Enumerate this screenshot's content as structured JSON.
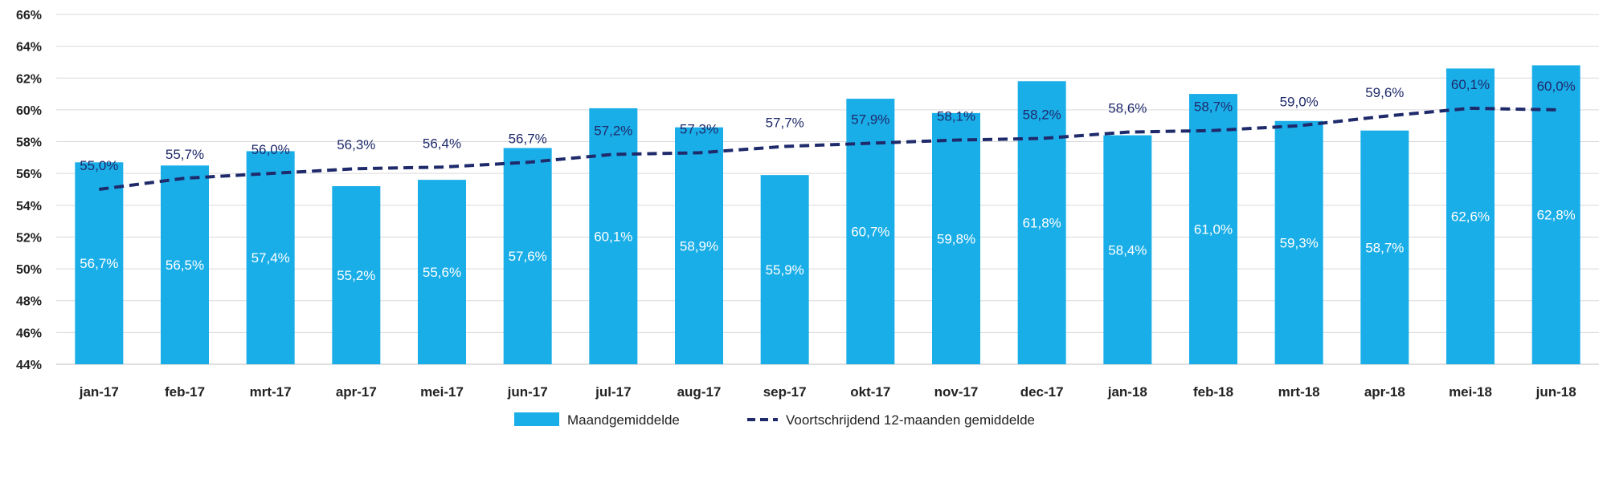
{
  "chart_data": {
    "type": "bar",
    "title": "",
    "xlabel": "",
    "ylabel": "",
    "ylim": [
      44,
      66
    ],
    "y_tick_step": 2,
    "y_tick_labels": [
      "44%",
      "46%",
      "48%",
      "50%",
      "52%",
      "54%",
      "56%",
      "58%",
      "60%",
      "62%",
      "64%",
      "66%"
    ],
    "grid": true,
    "legend_position": "bottom-center",
    "categories": [
      "jan-17",
      "feb-17",
      "mrt-17",
      "apr-17",
      "mei-17",
      "jun-17",
      "jul-17",
      "aug-17",
      "sep-17",
      "okt-17",
      "nov-17",
      "dec-17",
      "jan-18",
      "feb-18",
      "mrt-18",
      "apr-18",
      "mei-18",
      "jun-18"
    ],
    "series": [
      {
        "name": "Maandgemiddelde",
        "kind": "bar",
        "color": "#1aaee8",
        "values": [
          56.7,
          56.5,
          57.4,
          55.2,
          55.6,
          57.6,
          60.1,
          58.9,
          55.9,
          60.7,
          59.8,
          61.8,
          58.4,
          61.0,
          59.3,
          58.7,
          62.6,
          62.8
        ],
        "labels": [
          "56,7%",
          "56,5%",
          "57,4%",
          "55,2%",
          "55,6%",
          "57,6%",
          "60,1%",
          "58,9%",
          "55,9%",
          "60,7%",
          "59,8%",
          "61,8%",
          "58,4%",
          "61,0%",
          "59,3%",
          "58,7%",
          "62,6%",
          "62,8%"
        ]
      },
      {
        "name": "Voortschrijdend 12-maanden gemiddelde",
        "kind": "line",
        "style": "dashed",
        "color": "#1f2a6b",
        "values": [
          55.0,
          55.7,
          56.0,
          56.3,
          56.4,
          56.7,
          57.2,
          57.3,
          57.7,
          57.9,
          58.1,
          58.2,
          58.6,
          58.7,
          59.0,
          59.6,
          60.1,
          60.0
        ],
        "labels": [
          "55,0%",
          "55,7%",
          "56,0%",
          "56,3%",
          "56,4%",
          "56,7%",
          "57,2%",
          "57,3%",
          "57,7%",
          "57,9%",
          "58,1%",
          "58,2%",
          "58,6%",
          "58,7%",
          "59,0%",
          "59,6%",
          "60,1%",
          "60,0%"
        ]
      }
    ]
  }
}
